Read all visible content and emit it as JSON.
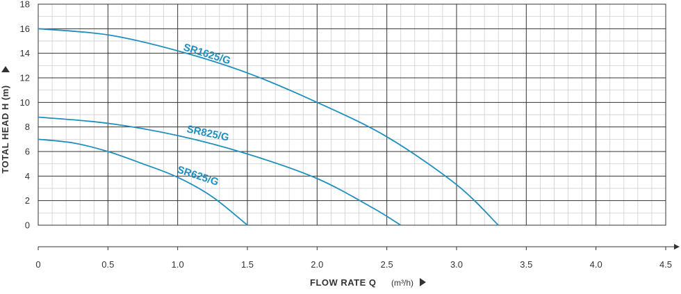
{
  "chart_data": {
    "type": "line",
    "title": "",
    "xlabel": "FLOW RATE Q",
    "xlabel_unit": "(m³/h)",
    "ylabel": "TOTAL HEAD H (m)",
    "xlim": [
      0,
      4.5
    ],
    "ylim": [
      0,
      18
    ],
    "x_ticks": [
      "0",
      "0.5",
      "1.0",
      "1.5",
      "2.0",
      "2.5",
      "3.0",
      "3.5",
      "4.0",
      "4.5"
    ],
    "y_ticks": [
      "0",
      "2",
      "4",
      "6",
      "8",
      "10",
      "12",
      "14",
      "16",
      "18"
    ],
    "grid": true,
    "line_color": "#1f8fbf",
    "series": [
      {
        "name": "SR1625/G",
        "x": [
          0,
          0.5,
          1.0,
          1.5,
          2.0,
          2.5,
          3.0,
          3.3
        ],
        "y": [
          16,
          15.5,
          14.2,
          12.4,
          10,
          7.2,
          3.3,
          0
        ]
      },
      {
        "name": "SR825/G",
        "x": [
          0,
          0.5,
          1.0,
          1.5,
          2.0,
          2.4,
          2.6
        ],
        "y": [
          8.8,
          8.3,
          7.3,
          5.8,
          3.8,
          1.4,
          0
        ]
      },
      {
        "name": "SR625/G",
        "x": [
          0,
          0.25,
          0.5,
          0.75,
          1.0,
          1.25,
          1.5
        ],
        "y": [
          7.0,
          6.7,
          6.0,
          5.0,
          3.9,
          2.3,
          0
        ]
      }
    ]
  }
}
